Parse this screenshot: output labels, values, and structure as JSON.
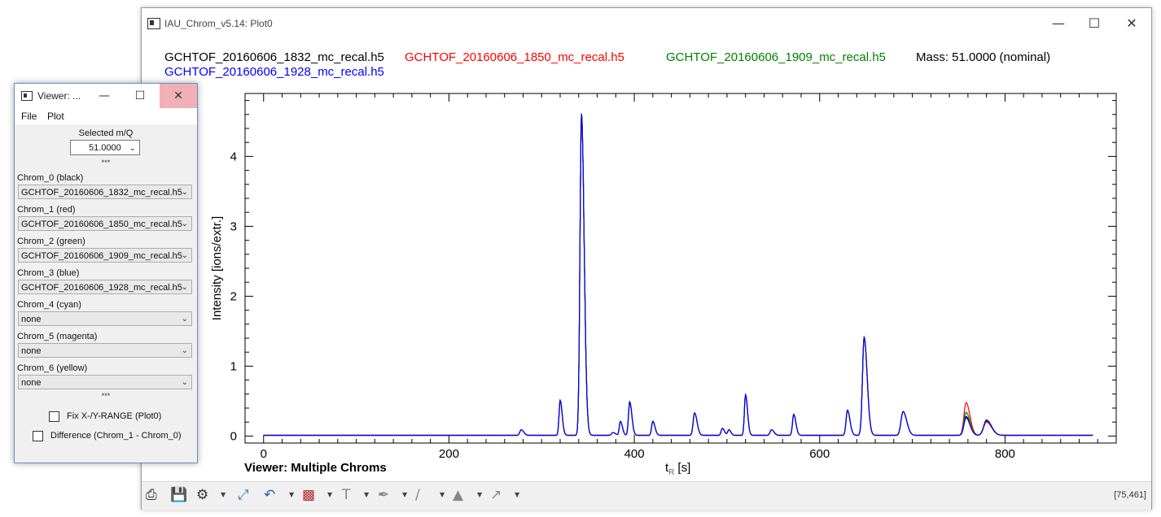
{
  "main_window": {
    "title": "IAU_Chrom_v5.14: Plot0",
    "minimize_icon": "minimize-icon",
    "maximize_icon": "maximize-icon",
    "close_icon": "close-icon"
  },
  "legend": {
    "file_black": "GCHTOF_20160606_1832_mc_recal.h5",
    "file_red": "GCHTOF_20160606_1850_mc_recal.h5",
    "file_green": "GCHTOF_20160606_1909_mc_recal.h5",
    "file_blue": "GCHTOF_20160606_1928_mc_recal.h5",
    "mass": "Mass: 51.0000 (nominal)"
  },
  "plot_footer_label": "Viewer: Multiple Chroms",
  "status": {
    "coords": "[75,461]"
  },
  "toolbar_icons": [
    "print-icon",
    "save-icon",
    "settings-icon",
    "zoom-fit-icon",
    "undo-icon",
    "bar-chart-icon",
    "text-icon",
    "brush-icon",
    "line-icon",
    "fill-icon",
    "arrow-icon"
  ],
  "colors": {
    "black": "#000000",
    "red": "#ff0000",
    "green": "#008000",
    "blue": "#0000ff"
  },
  "chart_data": {
    "type": "line",
    "xlabel_main": "t",
    "xlabel_sub": "R",
    "xlabel_unit": "[s]",
    "ylabel": "Intensity [ions/extr.]",
    "xlim": [
      -20,
      920
    ],
    "ylim": [
      -0.1,
      4.9
    ],
    "xticks": [
      0,
      200,
      400,
      600,
      800
    ],
    "yticks": [
      0,
      1,
      2,
      3,
      4
    ],
    "x_start": 0,
    "x_end": 895,
    "baseline": 0.01,
    "peaks": [
      {
        "x": 278,
        "h": 0.08,
        "w": 1.5
      },
      {
        "x": 320,
        "h": 0.5,
        "w": 1.2
      },
      {
        "x": 343,
        "h": 4.6,
        "w": 1.6
      },
      {
        "x": 377,
        "h": 0.04,
        "w": 1.5
      },
      {
        "x": 385,
        "h": 0.2,
        "w": 1.2
      },
      {
        "x": 395,
        "h": 0.48,
        "w": 1.3
      },
      {
        "x": 420,
        "h": 0.2,
        "w": 1.3
      },
      {
        "x": 465,
        "h": 0.32,
        "w": 1.5
      },
      {
        "x": 495,
        "h": 0.1,
        "w": 1.3
      },
      {
        "x": 502,
        "h": 0.08,
        "w": 1.2
      },
      {
        "x": 520,
        "h": 0.58,
        "w": 1.2
      },
      {
        "x": 548,
        "h": 0.08,
        "w": 1.5
      },
      {
        "x": 572,
        "h": 0.3,
        "w": 1.3
      },
      {
        "x": 630,
        "h": 0.36,
        "w": 1.5
      },
      {
        "x": 648,
        "h": 1.4,
        "w": 1.8
      },
      {
        "x": 690,
        "h": 0.34,
        "w": 2.2
      },
      {
        "x": 758,
        "h": 0.28,
        "w": 2.3
      },
      {
        "x": 780,
        "h": 0.21,
        "w": 3.0
      }
    ],
    "series": [
      {
        "color": "#000000",
        "scale": 1.0,
        "overrides": {
          "758": 0.27,
          "780": 0.2
        }
      },
      {
        "color": "#ff0000",
        "scale": 1.0,
        "overrides": {
          "758": 0.47,
          "780": 0.19
        }
      },
      {
        "color": "#008000",
        "scale": 1.0,
        "overrides": {
          "758": 0.33,
          "780": 0.21
        }
      },
      {
        "color": "#0000ff",
        "scale": 1.0,
        "overrides": {
          "758": 0.25,
          "780": 0.22
        }
      }
    ]
  },
  "viewer": {
    "title": "Viewer: ...",
    "menu": {
      "file": "File",
      "plot": "Plot"
    },
    "selected_mq_label": "Selected m/Q",
    "selected_mq_value": "51.0000",
    "sep": "***",
    "chroms": [
      {
        "label": "Chrom_0 (black)",
        "value": "GCHTOF_20160606_1832_mc_recal.h5"
      },
      {
        "label": "Chrom_1 (red)",
        "value": "GCHTOF_20160606_1850_mc_recal.h5"
      },
      {
        "label": "Chrom_2 (green)",
        "value": "GCHTOF_20160606_1909_mc_recal.h5"
      },
      {
        "label": "Chrom_3 (blue)",
        "value": "GCHTOF_20160606_1928_mc_recal.h5"
      },
      {
        "label": "Chrom_4 (cyan)",
        "value": "none"
      },
      {
        "label": "Chrom_5 (magenta)",
        "value": "none"
      },
      {
        "label": "Chrom_6 (yellow)",
        "value": "none"
      }
    ],
    "fix_range_label": "Fix X-/Y-RANGE (Plot0)",
    "difference_label": "Difference (Chrom_1 - Chrom_0)"
  }
}
